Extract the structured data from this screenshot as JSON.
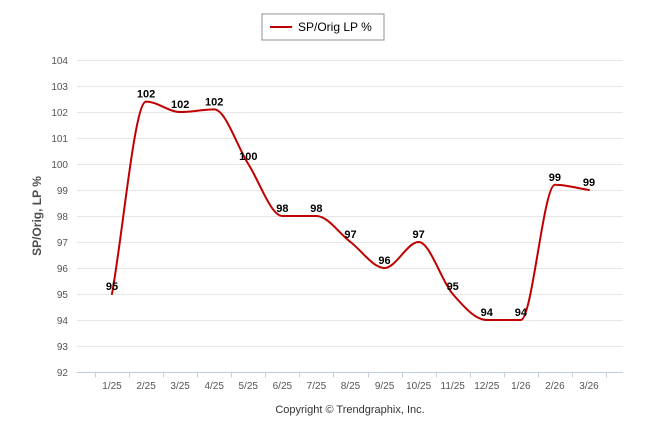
{
  "chart_data": {
    "type": "line",
    "categories": [
      "1/25",
      "2/25",
      "3/25",
      "4/25",
      "5/25",
      "6/25",
      "7/25",
      "8/25",
      "9/25",
      "10/25",
      "11/25",
      "12/25",
      "1/26",
      "2/26",
      "3/26"
    ],
    "series": [
      {
        "name": "SP/Orig LP %",
        "color": "#c00000",
        "values": [
          95,
          102,
          102,
          102,
          100,
          98,
          98,
          97,
          96,
          97,
          95,
          94,
          94,
          99,
          99
        ],
        "point_values": [
          95,
          102.4,
          102,
          102.1,
          100,
          98,
          98,
          97,
          96,
          97,
          95,
          94,
          94,
          99.2,
          99
        ]
      }
    ],
    "ylabel": "SP/Orig, LP %",
    "xlabel": "",
    "ylim": [
      92,
      104
    ],
    "yticks": [
      92,
      93,
      94,
      95,
      96,
      97,
      98,
      99,
      100,
      101,
      102,
      103,
      104
    ],
    "grid": true,
    "legend_position": "top-center"
  },
  "footer": {
    "credit": "Copyright © Trendgraphix, Inc."
  }
}
